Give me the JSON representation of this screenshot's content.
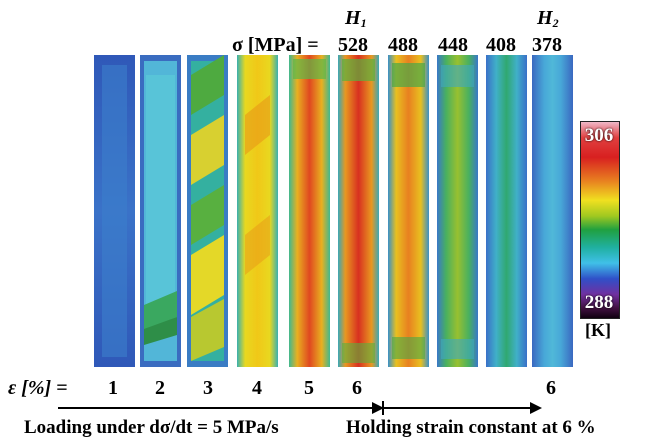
{
  "stress_label": "σ [MPa] =",
  "h_labels": {
    "h1_main": "H",
    "h1_sub": "1",
    "h2_main": "H",
    "h2_sub": "2"
  },
  "stress_values": [
    "528",
    "488",
    "448",
    "408",
    "378"
  ],
  "strain_label": "ε  [%] =",
  "strain_values": [
    "1",
    "2",
    "3",
    "4",
    "5",
    "6",
    "6"
  ],
  "colorbar": {
    "max": "306",
    "min": "288",
    "unit": "[K]"
  },
  "captions": {
    "loading": "Loading under dσ/dt = 5 MPa/s",
    "holding": "Holding strain constant at 6 %"
  },
  "colors": {
    "cold": "#3a5ab8",
    "cool": "#48c0e0",
    "mid": "#2aa850",
    "warm": "#f0e020",
    "hot": "#e23020"
  }
}
